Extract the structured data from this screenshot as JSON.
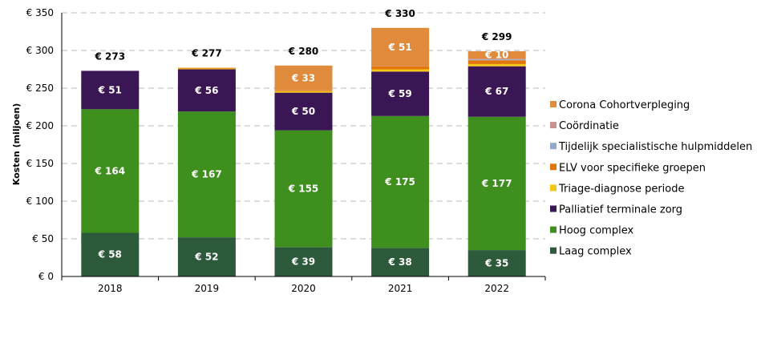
{
  "chart_data": {
    "type": "bar",
    "stacked": true,
    "title": "",
    "xlabel": "",
    "ylabel": "Kosten (miljoen)",
    "ylim": [
      0,
      350
    ],
    "y_ticks": [
      0,
      50,
      100,
      150,
      200,
      250,
      300,
      350
    ],
    "y_tick_labels": [
      "€ 0",
      "€ 50",
      "€ 100",
      "€ 150",
      "€ 200",
      "€ 250",
      "€ 300",
      "€ 350"
    ],
    "grid": "horizontal dashed",
    "legend_position": "right",
    "categories": [
      "2018",
      "2019",
      "2020",
      "2021",
      "2022"
    ],
    "series": [
      {
        "name": "Laag complex",
        "color": "#2d5a3a",
        "values": [
          58,
          52,
          39,
          38,
          35
        ],
        "labels": [
          "€ 58",
          "€ 52",
          "€ 39",
          "€ 38",
          "€ 35"
        ]
      },
      {
        "name": "Hoog complex",
        "color": "#3f8f1e",
        "values": [
          164,
          167,
          155,
          175,
          177
        ],
        "labels": [
          "€ 164",
          "€ 167",
          "€ 155",
          "€ 175",
          "€ 177"
        ]
      },
      {
        "name": "Palliatief terminale zorg",
        "color": "#3b1654",
        "values": [
          51,
          56,
          50,
          59,
          67
        ],
        "labels": [
          "€ 51",
          "€ 56",
          "€ 50",
          "€ 59",
          "€ 67"
        ]
      },
      {
        "name": "Triage-diagnose periode",
        "color": "#f5c518",
        "values": [
          0,
          1,
          2,
          3,
          3
        ],
        "labels": [
          "",
          "",
          "",
          "",
          ""
        ]
      },
      {
        "name": "ELV voor specifieke groepen",
        "color": "#e0760c",
        "values": [
          0,
          1,
          1,
          4,
          5
        ],
        "labels": [
          "",
          "",
          "",
          "",
          ""
        ]
      },
      {
        "name": "Tijdelijk specialistische hulpmiddelen",
        "color": "#8fa9c8",
        "values": [
          0,
          0,
          0,
          0,
          1
        ],
        "labels": [
          "",
          "",
          "",
          "",
          ""
        ]
      },
      {
        "name": "Coördinatie",
        "color": "#c99090",
        "values": [
          0,
          0,
          0,
          0,
          1
        ],
        "labels": [
          "",
          "",
          "",
          "",
          ""
        ]
      },
      {
        "name": "Corona Cohortverpleging",
        "color": "#e08a3c",
        "values": [
          0,
          0,
          33,
          51,
          10
        ],
        "labels": [
          "",
          "",
          "€ 33",
          "€ 51",
          "€ 10"
        ]
      }
    ],
    "totals": [
      273,
      277,
      280,
      330,
      299
    ],
    "total_labels": [
      "€ 273",
      "€ 277",
      "€ 280",
      "€ 330",
      "€ 299"
    ]
  }
}
